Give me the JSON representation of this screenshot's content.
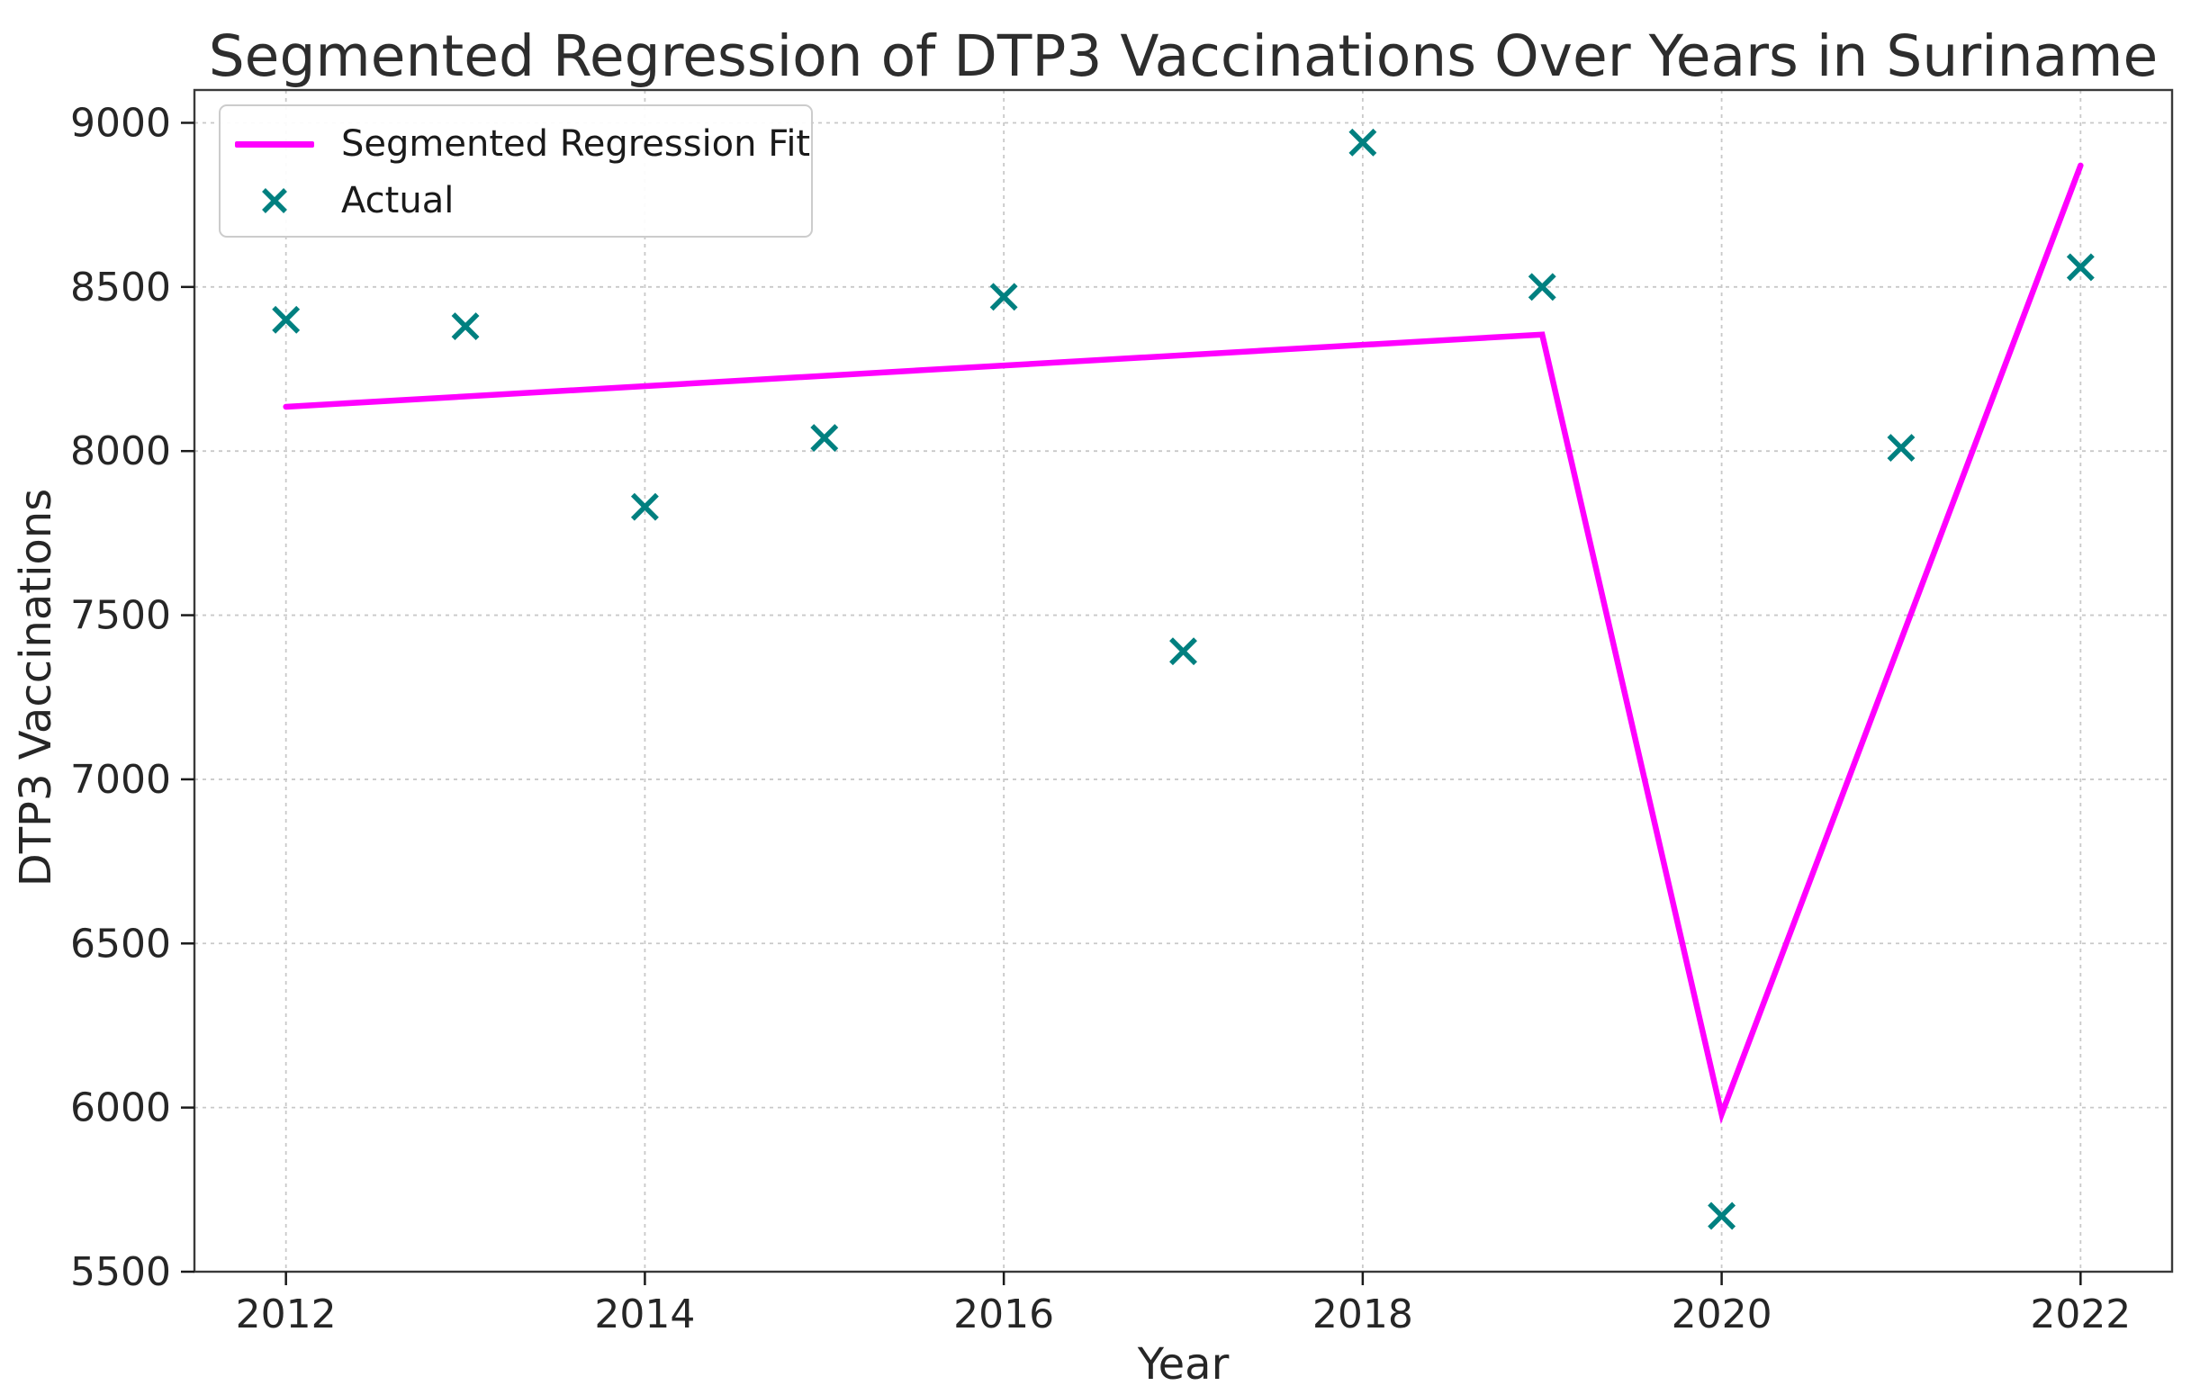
{
  "chart_data": {
    "type": "line+scatter",
    "title": "Segmented Regression of DTP3 Vaccinations Over Years in Suriname",
    "xlabel": "Year",
    "ylabel": "DTP3 Vaccinations",
    "x_ticks": [
      2012,
      2014,
      2016,
      2018,
      2020,
      2022
    ],
    "y_ticks": [
      5500,
      6000,
      6500,
      7000,
      7500,
      8000,
      8500,
      9000
    ],
    "xlim": [
      2011.49,
      2022.51
    ],
    "ylim": [
      5500,
      9100
    ],
    "grid": "dashed",
    "grid_color": "#c9c9c9",
    "spine_color": "#3a3a3a",
    "tick_label_color": "#262626",
    "legend_position": "upper left",
    "series": [
      {
        "name": "Segmented Regression Fit",
        "type": "line",
        "color": "#ff00ff",
        "x": [
          2012,
          2019,
          2020,
          2022
        ],
        "y": [
          8135,
          8355,
          5980,
          8870
        ]
      },
      {
        "name": "Actual",
        "type": "scatter",
        "marker": "x",
        "color": "#008080",
        "x": [
          2012,
          2013,
          2014,
          2015,
          2016,
          2017,
          2018,
          2019,
          2020,
          2021,
          2022
        ],
        "y": [
          8400,
          8380,
          7830,
          8040,
          8470,
          7390,
          8940,
          8500,
          5670,
          8010,
          8560
        ]
      }
    ]
  }
}
